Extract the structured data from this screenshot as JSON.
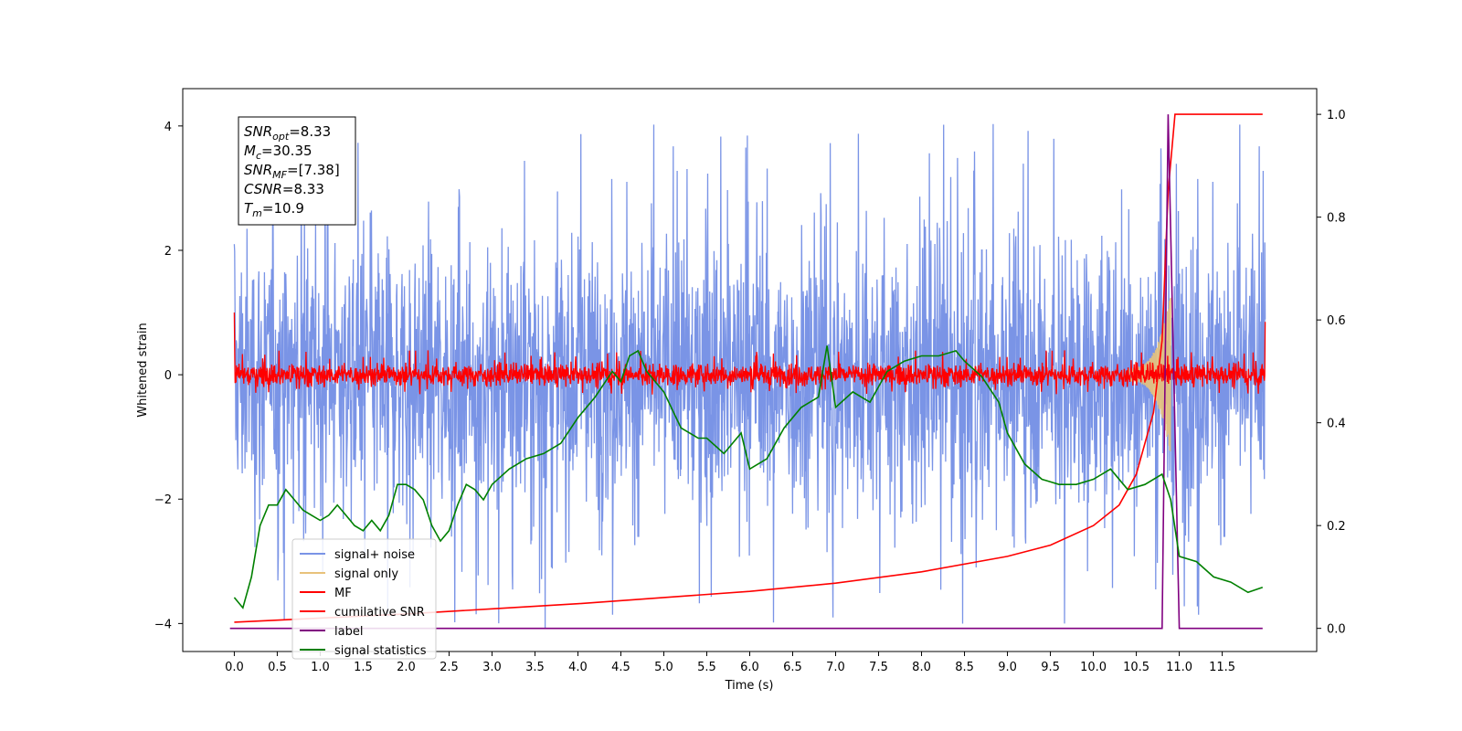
{
  "chart_data": {
    "type": "line",
    "xlabel": "Time (s)",
    "ylabel_left": "Whitened strain",
    "ylabel_right": "",
    "xlim": [
      -0.6,
      12.6
    ],
    "ylim_left": [
      -4.45,
      4.6
    ],
    "ylim_right": [
      -0.045,
      1.05
    ],
    "x_ticks": [
      "0.0",
      "0.5",
      "1.0",
      "1.5",
      "2.0",
      "2.5",
      "3.0",
      "3.5",
      "4.0",
      "4.5",
      "5.0",
      "5.5",
      "6.0",
      "6.5",
      "7.0",
      "7.5",
      "8.0",
      "8.5",
      "9.0",
      "9.5",
      "10.0",
      "10.5",
      "11.0",
      "11.5"
    ],
    "y_ticks_left": [
      "4",
      "2",
      "0",
      "−2",
      "−4"
    ],
    "y_ticks_right": [
      "1.0",
      "0.8",
      "0.6",
      "0.4",
      "0.2",
      "0.0"
    ],
    "grid": false,
    "legend_placement": "lower-left",
    "annotation": {
      "lines": [
        {
          "base": "SNR",
          "sub": "opt",
          "value": "=8.33"
        },
        {
          "base": "M",
          "sub": "c",
          "value": "=30.35"
        },
        {
          "base": "SNR",
          "sub": "MF",
          "value": "=[7.38]"
        },
        {
          "base": "CSNR",
          "sub": "",
          "value": "=8.33"
        },
        {
          "base": "T",
          "sub": "m",
          "value": "=10.9"
        }
      ]
    },
    "series": [
      {
        "name": "signal+ noise",
        "axis": "left",
        "color": "#7a94e6",
        "style": "noise band ±2 with spikes to about ±4",
        "x_range": [
          0.0,
          12.0
        ]
      },
      {
        "name": "signal only",
        "axis": "left",
        "color": "#e8c27a",
        "style": "chirp, visible near 10.5–10.9 with amplitude up to about 1.2",
        "x_range": [
          10.4,
          10.9
        ]
      },
      {
        "name": "MF",
        "axis": "left",
        "color": "#ff0000",
        "style": "noise around 0, range about ±0.4, starts at 1.0",
        "x_range": [
          0.0,
          12.0
        ]
      },
      {
        "name": "cumilative SNR",
        "axis": "right",
        "color": "#ff0000",
        "x": [
          0.0,
          1.0,
          2.0,
          3.0,
          4.0,
          5.0,
          6.0,
          7.0,
          8.0,
          9.0,
          9.5,
          10.0,
          10.3,
          10.5,
          10.7,
          10.8,
          10.87,
          10.95,
          11.0,
          11.5,
          11.97
        ],
        "y": [
          0.012,
          0.02,
          0.028,
          0.038,
          0.048,
          0.06,
          0.072,
          0.088,
          0.11,
          0.14,
          0.162,
          0.2,
          0.24,
          0.3,
          0.42,
          0.56,
          0.85,
          1.0,
          1.0,
          1.0,
          1.0
        ]
      },
      {
        "name": "label",
        "axis": "right",
        "color": "#800080",
        "x": [
          -0.05,
          10.8,
          10.87,
          11.0,
          11.97
        ],
        "y": [
          0.0,
          0.0,
          1.0,
          0.0,
          0.0
        ]
      },
      {
        "name": "signal statistics",
        "axis": "right",
        "color": "#008000",
        "x": [
          0.0,
          0.1,
          0.2,
          0.3,
          0.4,
          0.5,
          0.6,
          0.7,
          0.8,
          0.9,
          1.0,
          1.1,
          1.2,
          1.3,
          1.4,
          1.5,
          1.6,
          1.7,
          1.8,
          1.9,
          2.0,
          2.1,
          2.2,
          2.3,
          2.4,
          2.5,
          2.6,
          2.7,
          2.8,
          2.9,
          3.0,
          3.2,
          3.4,
          3.6,
          3.8,
          4.0,
          4.2,
          4.4,
          4.5,
          4.6,
          4.7,
          4.8,
          4.9,
          5.0,
          5.2,
          5.4,
          5.5,
          5.7,
          5.9,
          6.0,
          6.2,
          6.4,
          6.6,
          6.8,
          6.9,
          7.0,
          7.2,
          7.4,
          7.6,
          7.8,
          8.0,
          8.2,
          8.4,
          8.5,
          8.7,
          8.9,
          9.0,
          9.2,
          9.4,
          9.6,
          9.8,
          10.0,
          10.2,
          10.4,
          10.6,
          10.8,
          10.9,
          11.0,
          11.2,
          11.4,
          11.6,
          11.8,
          11.97
        ],
        "y": [
          0.06,
          0.04,
          0.1,
          0.2,
          0.24,
          0.24,
          0.27,
          0.25,
          0.23,
          0.22,
          0.21,
          0.22,
          0.24,
          0.22,
          0.2,
          0.19,
          0.21,
          0.19,
          0.22,
          0.28,
          0.28,
          0.27,
          0.25,
          0.2,
          0.17,
          0.19,
          0.24,
          0.28,
          0.27,
          0.25,
          0.28,
          0.31,
          0.33,
          0.34,
          0.36,
          0.41,
          0.45,
          0.5,
          0.48,
          0.53,
          0.54,
          0.5,
          0.48,
          0.46,
          0.39,
          0.37,
          0.37,
          0.34,
          0.38,
          0.31,
          0.33,
          0.39,
          0.43,
          0.45,
          0.55,
          0.43,
          0.46,
          0.44,
          0.5,
          0.52,
          0.53,
          0.53,
          0.54,
          0.52,
          0.49,
          0.44,
          0.38,
          0.32,
          0.29,
          0.28,
          0.28,
          0.29,
          0.31,
          0.27,
          0.28,
          0.3,
          0.25,
          0.14,
          0.13,
          0.1,
          0.09,
          0.07,
          0.08
        ]
      }
    ]
  }
}
